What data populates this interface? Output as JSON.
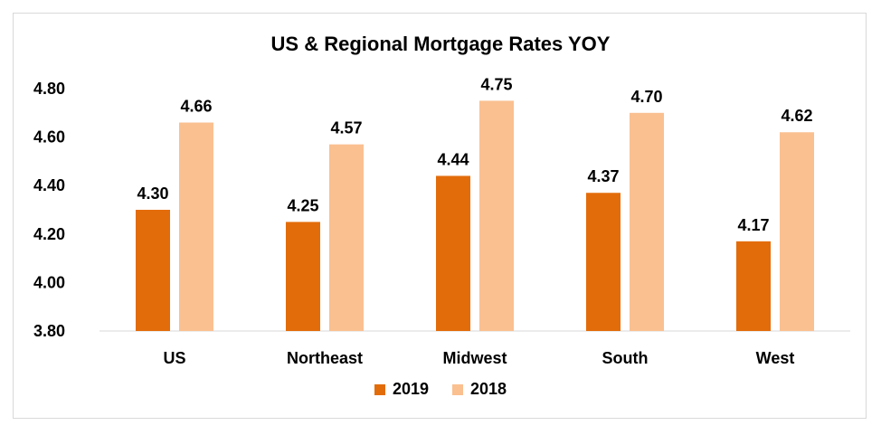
{
  "chart_data": {
    "type": "bar",
    "title": "US & Regional Mortgage Rates YOY",
    "categories": [
      "US",
      "Northeast",
      "Midwest",
      "South",
      "West"
    ],
    "series": [
      {
        "name": "2019",
        "values": [
          4.3,
          4.25,
          4.44,
          4.37,
          4.17
        ],
        "labels": [
          "4.30",
          "4.25",
          "4.44",
          "4.37",
          "4.17"
        ],
        "color": "#e36c0a"
      },
      {
        "name": "2018",
        "values": [
          4.66,
          4.57,
          4.75,
          4.7,
          4.62
        ],
        "labels": [
          "4.66",
          "4.57",
          "4.75",
          "4.70",
          "4.62"
        ],
        "color": "#fac090"
      }
    ],
    "ylim": [
      3.8,
      4.8
    ],
    "yticks": [
      "3.80",
      "4.00",
      "4.20",
      "4.40",
      "4.60",
      "4.80"
    ],
    "xlabel": "",
    "ylabel": "",
    "grid": false,
    "legend_position": "bottom"
  }
}
